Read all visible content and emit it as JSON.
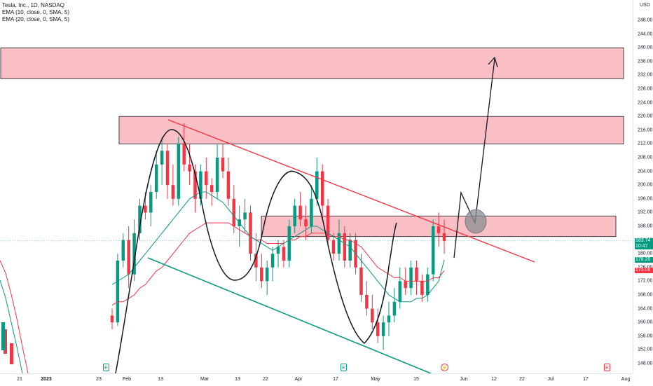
{
  "legend": {
    "title": "Tesla, Inc., 1D, NASDAQ",
    "ema10": "EMA (10, close, 0, SMA, 5)",
    "ema20": "EMA (20, close, 0, SMA, 5)"
  },
  "currency": "USD",
  "price_scale": {
    "ticks": [
      "248.00",
      "244.00",
      "240.00",
      "236.00",
      "232.00",
      "228.00",
      "224.00",
      "220.00",
      "216.00",
      "212.00",
      "208.00",
      "204.00",
      "200.00",
      "196.00",
      "192.00",
      "188.00",
      "184.00",
      "180.00",
      "176.00",
      "172.00",
      "168.00",
      "164.00",
      "160.00",
      "156.00",
      "152.00",
      "148.00"
    ],
    "last_price": "183.74",
    "countdown": "10:47",
    "ema10_value": "178.20",
    "ema20_value": "175.06"
  },
  "time_scale": {
    "ticks": [
      "21",
      "2023",
      "23",
      "Feb",
      "13",
      "Mar",
      "13",
      "22",
      "Apr",
      "17",
      "May",
      "15",
      "Jun",
      "12",
      "22",
      "Jul",
      "17",
      "Aug"
    ]
  },
  "events": {
    "earnings": "E",
    "dividend": "⚡"
  },
  "colors": {
    "up": "#089981",
    "down": "#f23645",
    "ema10": "#089981",
    "ema20": "#f23645",
    "zone_fill": "#f9b8be",
    "trendline_red": "#f23645",
    "trendline_green": "#089981"
  },
  "chart_data": {
    "type": "candlestick",
    "symbol": "TSLA",
    "interval": "1D",
    "ylim": [
      146,
      252
    ],
    "candles": [
      [
        162,
        164,
        158,
        160
      ],
      [
        160,
        180,
        159,
        178
      ],
      [
        178,
        186,
        176,
        184
      ],
      [
        184,
        188,
        170,
        174
      ],
      [
        174,
        190,
        172,
        186
      ],
      [
        186,
        196,
        184,
        194
      ],
      [
        194,
        198,
        190,
        192
      ],
      [
        192,
        200,
        188,
        198
      ],
      [
        198,
        210,
        196,
        206
      ],
      [
        206,
        214,
        200,
        210
      ],
      [
        210,
        212,
        196,
        200
      ],
      [
        200,
        206,
        194,
        196
      ],
      [
        196,
        214,
        194,
        212
      ],
      [
        212,
        218,
        204,
        206
      ],
      [
        206,
        212,
        200,
        204
      ],
      [
        204,
        206,
        192,
        196
      ],
      [
        196,
        206,
        194,
        204
      ],
      [
        204,
        208,
        196,
        200
      ],
      [
        200,
        202,
        194,
        198
      ],
      [
        198,
        212,
        196,
        208
      ],
      [
        208,
        212,
        202,
        204
      ],
      [
        204,
        208,
        194,
        196
      ],
      [
        196,
        200,
        186,
        188
      ],
      [
        188,
        194,
        182,
        190
      ],
      [
        190,
        196,
        186,
        192
      ],
      [
        192,
        194,
        178,
        180
      ],
      [
        180,
        186,
        172,
        176
      ],
      [
        176,
        180,
        170,
        172
      ],
      [
        172,
        178,
        168,
        176
      ],
      [
        176,
        182,
        172,
        180
      ],
      [
        180,
        184,
        176,
        182
      ],
      [
        182,
        184,
        176,
        178
      ],
      [
        178,
        190,
        176,
        188
      ],
      [
        188,
        196,
        186,
        194
      ],
      [
        194,
        198,
        188,
        190
      ],
      [
        190,
        194,
        184,
        188
      ],
      [
        188,
        200,
        186,
        196
      ],
      [
        196,
        208,
        194,
        204
      ],
      [
        204,
        206,
        190,
        194
      ],
      [
        194,
        196,
        182,
        184
      ],
      [
        184,
        186,
        178,
        180
      ],
      [
        180,
        190,
        178,
        186
      ],
      [
        186,
        188,
        176,
        178
      ],
      [
        178,
        186,
        176,
        184
      ],
      [
        184,
        186,
        174,
        176
      ],
      [
        176,
        180,
        166,
        168
      ],
      [
        168,
        172,
        162,
        164
      ],
      [
        164,
        168,
        158,
        160
      ],
      [
        160,
        164,
        154,
        156
      ],
      [
        156,
        162,
        152,
        160
      ],
      [
        160,
        166,
        156,
        162
      ],
      [
        162,
        170,
        160,
        166
      ],
      [
        166,
        176,
        164,
        172
      ],
      [
        172,
        176,
        168,
        170
      ],
      [
        170,
        178,
        168,
        176
      ],
      [
        176,
        178,
        168,
        172
      ],
      [
        172,
        174,
        166,
        168
      ],
      [
        168,
        176,
        166,
        174
      ],
      [
        174,
        190,
        172,
        188
      ],
      [
        188,
        192,
        182,
        186
      ],
      [
        186,
        190,
        180,
        183.74
      ]
    ],
    "ema10": [
      171,
      172,
      173,
      174,
      176,
      178,
      180,
      182,
      184,
      186,
      188,
      190,
      192,
      194,
      196,
      197,
      198,
      198,
      197,
      196,
      195,
      193,
      191,
      189,
      187,
      185,
      184,
      183,
      182,
      181,
      182,
      183,
      184,
      185,
      186,
      187,
      188,
      188,
      187,
      186,
      185,
      184,
      183,
      182,
      180,
      178,
      176,
      174,
      172,
      170,
      168,
      167,
      166,
      166,
      166,
      167,
      167,
      168,
      170,
      172,
      178.2
    ],
    "ema20": [
      165,
      166,
      166,
      167,
      168,
      170,
      171,
      173,
      175,
      176,
      178,
      180,
      182,
      184,
      186,
      187,
      188,
      189,
      189,
      189,
      189,
      189,
      188,
      187,
      186,
      185,
      184,
      184,
      183,
      183,
      183,
      183,
      184,
      184,
      185,
      185,
      186,
      186,
      186,
      186,
      185,
      185,
      184,
      184,
      183,
      182,
      180,
      178,
      176,
      175,
      174,
      173,
      173,
      172,
      172,
      172,
      172,
      172,
      173,
      173,
      175.06
    ],
    "zones": [
      {
        "from": 231,
        "to": 240
      },
      {
        "from": 212,
        "to": 220
      },
      {
        "from": 185,
        "to": 191
      }
    ],
    "last_price": 183.74
  }
}
